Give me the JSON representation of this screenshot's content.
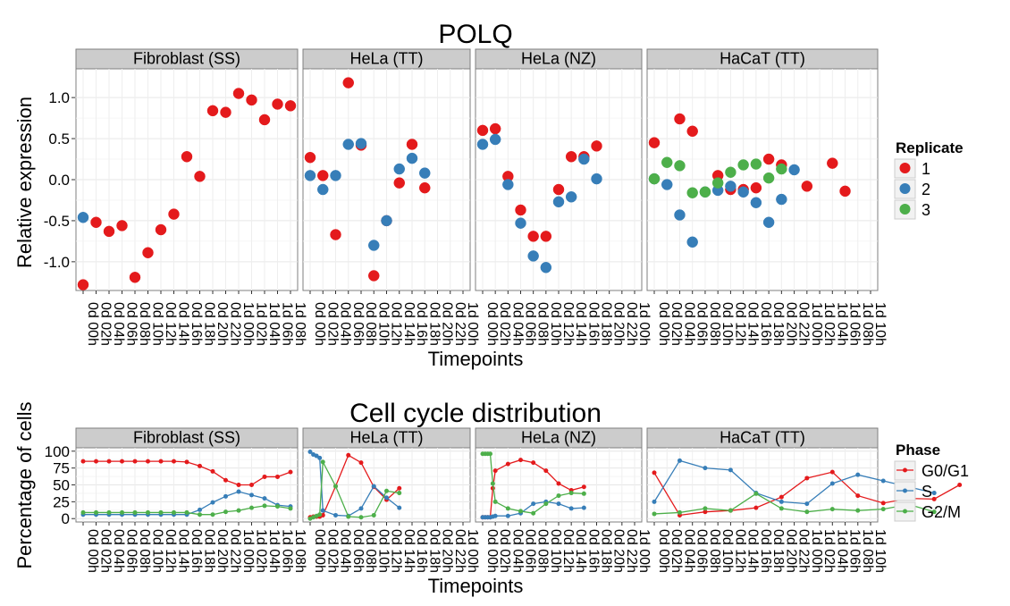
{
  "chart_data": [
    {
      "type": "scatter",
      "title": "POLQ",
      "xlabel": "Timepoints",
      "ylabel": "Relative expression",
      "ylim": [
        -1.35,
        1.35
      ],
      "yticks": [
        "1.0",
        "0.5",
        "0.0",
        "-0.5",
        "-1.0"
      ],
      "grid": true,
      "legend": {
        "title": "Replicate",
        "position": "right",
        "entries": [
          "1",
          "2",
          "3"
        ]
      },
      "colors": {
        "1": "#E41A1C",
        "2": "#377EB8",
        "3": "#4DAF4A"
      },
      "panels": [
        {
          "label": "Fibroblast (SS)",
          "categories": [
            "0d 00h",
            "0d 02h",
            "0d 04h",
            "0d 06h",
            "0d 08h",
            "0d 10h",
            "0d 12h",
            "0d 14h",
            "0d 16h",
            "0d 18h",
            "0d 20h",
            "0d 22h",
            "1d 00h",
            "1d 02h",
            "1d 04h",
            "1d 06h",
            "1d 08h"
          ],
          "series": [
            {
              "name": "1",
              "values": [
                -1.28,
                -0.52,
                -0.63,
                -0.56,
                -1.19,
                -0.89,
                -0.61,
                -0.42,
                0.28,
                0.04,
                0.84,
                0.82,
                1.05,
                0.97,
                0.73,
                0.92,
                0.9
              ]
            },
            {
              "name": "2",
              "values": [
                -0.46,
                null,
                null,
                null,
                null,
                null,
                null,
                null,
                null,
                null,
                null,
                null,
                null,
                null,
                null,
                null,
                null
              ]
            }
          ]
        },
        {
          "label": "HeLa (TT)",
          "categories": [
            "0d 00h",
            "0d 02h",
            "0d 04h",
            "0d 06h",
            "0d 08h",
            "0d 10h",
            "0d 12h",
            "0d 14h",
            "0d 16h",
            "0d 18h",
            "0d 20h",
            "0d 22h",
            "1d 00h"
          ],
          "series": [
            {
              "name": "1",
              "values": [
                0.27,
                0.05,
                -0.67,
                1.18,
                0.42,
                -1.17,
                -0.5,
                -0.04,
                0.43,
                -0.1,
                null,
                null,
                null
              ]
            },
            {
              "name": "2",
              "values": [
                0.05,
                -0.12,
                0.05,
                0.43,
                0.44,
                -0.8,
                -0.5,
                0.13,
                0.26,
                0.08,
                null,
                null,
                null
              ]
            }
          ]
        },
        {
          "label": "HeLa (NZ)",
          "categories": [
            "0d 00h",
            "0d 02h",
            "0d 04h",
            "0d 06h",
            "0d 08h",
            "0d 10h",
            "0d 12h",
            "0d 14h",
            "0d 16h",
            "0d 18h",
            "0d 20h",
            "0d 22h",
            "1d 00h"
          ],
          "series": [
            {
              "name": "1",
              "values": [
                0.6,
                0.62,
                0.04,
                -0.37,
                -0.69,
                -0.69,
                -0.12,
                0.28,
                0.28,
                0.41,
                null,
                null,
                null
              ]
            },
            {
              "name": "2",
              "values": [
                0.43,
                0.49,
                -0.06,
                -0.53,
                -0.93,
                -1.07,
                -0.27,
                -0.21,
                0.25,
                0.01,
                null,
                null,
                null
              ]
            }
          ]
        },
        {
          "label": "HaCaT (TT)",
          "categories": [
            "0d 00h",
            "0d 02h",
            "0d 04h",
            "0d 06h",
            "0d 08h",
            "0d 10h",
            "0d 12h",
            "0d 14h",
            "0d 16h",
            "0d 18h",
            "0d 20h",
            "0d 22h",
            "1d 00h",
            "1d 02h",
            "1d 04h",
            "1d 06h",
            "1d 08h",
            "1d 10h"
          ],
          "series": [
            {
              "name": "1",
              "values": [
                0.45,
                null,
                0.74,
                0.59,
                null,
                0.05,
                -0.12,
                -0.12,
                -0.1,
                0.25,
                0.18,
                null,
                -0.08,
                null,
                0.2,
                -0.14,
                null,
                null
              ]
            },
            {
              "name": "2",
              "values": [
                0.01,
                -0.06,
                -0.43,
                -0.76,
                -0.15,
                -0.13,
                -0.08,
                -0.15,
                -0.28,
                -0.52,
                -0.24,
                0.12,
                null,
                null,
                null,
                null,
                null,
                null
              ]
            },
            {
              "name": "3",
              "values": [
                0.01,
                0.21,
                0.17,
                -0.16,
                -0.15,
                -0.04,
                0.09,
                0.18,
                0.19,
                0.02,
                0.13,
                null,
                null,
                null,
                null,
                null,
                null,
                null
              ]
            }
          ]
        }
      ]
    },
    {
      "type": "line",
      "title": "Cell cycle distribution",
      "xlabel": "Timepoints",
      "ylabel": "Percentage of cells",
      "ylim": [
        -5,
        105
      ],
      "yticks": [
        "100",
        "75",
        "50",
        "25",
        "0"
      ],
      "grid": true,
      "legend": {
        "title": "Phase",
        "position": "right",
        "entries": [
          "G0/G1",
          "S",
          "G2/M"
        ]
      },
      "colors": {
        "G0/G1": "#E41A1C",
        "S": "#377EB8",
        "G2/M": "#4DAF4A"
      },
      "panels": [
        {
          "label": "Fibroblast (SS)",
          "categories": [
            "0d 00h",
            "0d 02h",
            "0d 04h",
            "0d 06h",
            "0d 08h",
            "0d 10h",
            "0d 12h",
            "0d 14h",
            "0d 16h",
            "0d 18h",
            "0d 20h",
            "0d 22h",
            "1d 00h",
            "1d 02h",
            "1d 04h",
            "1d 06h",
            "1d 08h"
          ],
          "series": [
            {
              "name": "G0/G1",
              "values": [
                85,
                85,
                85,
                85,
                85,
                85,
                85,
                85,
                84,
                78,
                70,
                57,
                50,
                50,
                62,
                62,
                69
              ]
            },
            {
              "name": "S",
              "values": [
                6,
                6,
                6,
                6,
                6,
                6,
                6,
                6,
                6,
                13,
                24,
                33,
                40,
                35,
                30,
                20,
                18
              ]
            },
            {
              "name": "G2/M",
              "values": [
                9,
                9,
                9,
                9,
                9,
                9,
                9,
                9,
                9,
                6,
                6,
                10,
                12,
                16,
                19,
                18,
                15
              ]
            }
          ]
        },
        {
          "label": "HeLa (TT)",
          "categories": [
            "0d 00h",
            "0d 02h",
            "0d 04h",
            "0d 06h",
            "0d 08h",
            "0d 10h",
            "0d 12h",
            "0d 14h",
            "0d 16h",
            "0d 18h",
            "0d 20h",
            "0d 22h",
            "1d 00h"
          ],
          "x": [
            0,
            0.25,
            0.5,
            0.75,
            1,
            2,
            3,
            4,
            5,
            6,
            7,
            8
          ],
          "series": [
            {
              "name": "G0/G1",
              "values": [
                2,
                3,
                3,
                3,
                5,
                48,
                94,
                83,
                47,
                28,
                45,
                null
              ]
            },
            {
              "name": "S",
              "values": [
                99,
                95,
                93,
                90,
                12,
                5,
                4,
                15,
                48,
                31,
                16,
                null
              ]
            },
            {
              "name": "G2/M",
              "values": [
                0,
                2,
                4,
                6,
                84,
                48,
                3,
                2,
                5,
                41,
                38,
                null
              ]
            }
          ]
        },
        {
          "label": "HeLa (NZ)",
          "categories": [
            "0d 00h",
            "0d 02h",
            "0d 04h",
            "0d 06h",
            "0d 08h",
            "0d 10h",
            "0d 12h",
            "0d 14h",
            "0d 16h",
            "0d 18h",
            "0d 20h",
            "0d 22h",
            "1d 00h"
          ],
          "x": [
            0,
            0.2,
            0.4,
            0.6,
            0.8,
            1,
            2,
            3,
            4,
            5,
            6,
            7,
            8,
            9,
            10
          ],
          "series": [
            {
              "name": "G0/G1",
              "values": [
                2,
                2,
                2,
                2,
                45,
                71,
                81,
                87,
                83,
                71,
                52,
                42,
                47,
                null,
                null
              ]
            },
            {
              "name": "S",
              "values": [
                2,
                2,
                2,
                2,
                3,
                4,
                4,
                8,
                22,
                25,
                22,
                15,
                16,
                null,
                null
              ]
            },
            {
              "name": "G2/M",
              "values": [
                96,
                96,
                96,
                96,
                52,
                25,
                15,
                11,
                8,
                22,
                34,
                38,
                37,
                null,
                null
              ]
            }
          ]
        },
        {
          "label": "HaCaT (TT)",
          "categories": [
            "0d 00h",
            "0d 02h",
            "0d 04h",
            "0d 06h",
            "0d 08h",
            "0d 10h",
            "0d 12h",
            "0d 14h",
            "0d 16h",
            "0d 18h",
            "0d 20h",
            "0d 22h",
            "1d 00h",
            "1d 02h",
            "1d 04h",
            "1d 06h",
            "1d 08h",
            "1d 10h"
          ],
          "x": [
            0,
            2,
            4,
            6,
            8,
            10,
            12,
            14,
            16,
            18,
            20,
            22,
            24,
            26
          ],
          "series": [
            {
              "name": "G0/G1",
              "values": [
                68,
                5,
                10,
                12,
                16,
                32,
                60,
                69,
                34,
                23,
                30,
                29,
                50,
                null
              ]
            },
            {
              "name": "S",
              "values": [
                25,
                86,
                75,
                72,
                38,
                25,
                22,
                52,
                65,
                56,
                47,
                38,
                null,
                null
              ]
            },
            {
              "name": "G2/M",
              "values": [
                7,
                9,
                15,
                12,
                37,
                15,
                10,
                14,
                12,
                14,
                21,
                10,
                null,
                null
              ]
            }
          ]
        }
      ]
    }
  ]
}
